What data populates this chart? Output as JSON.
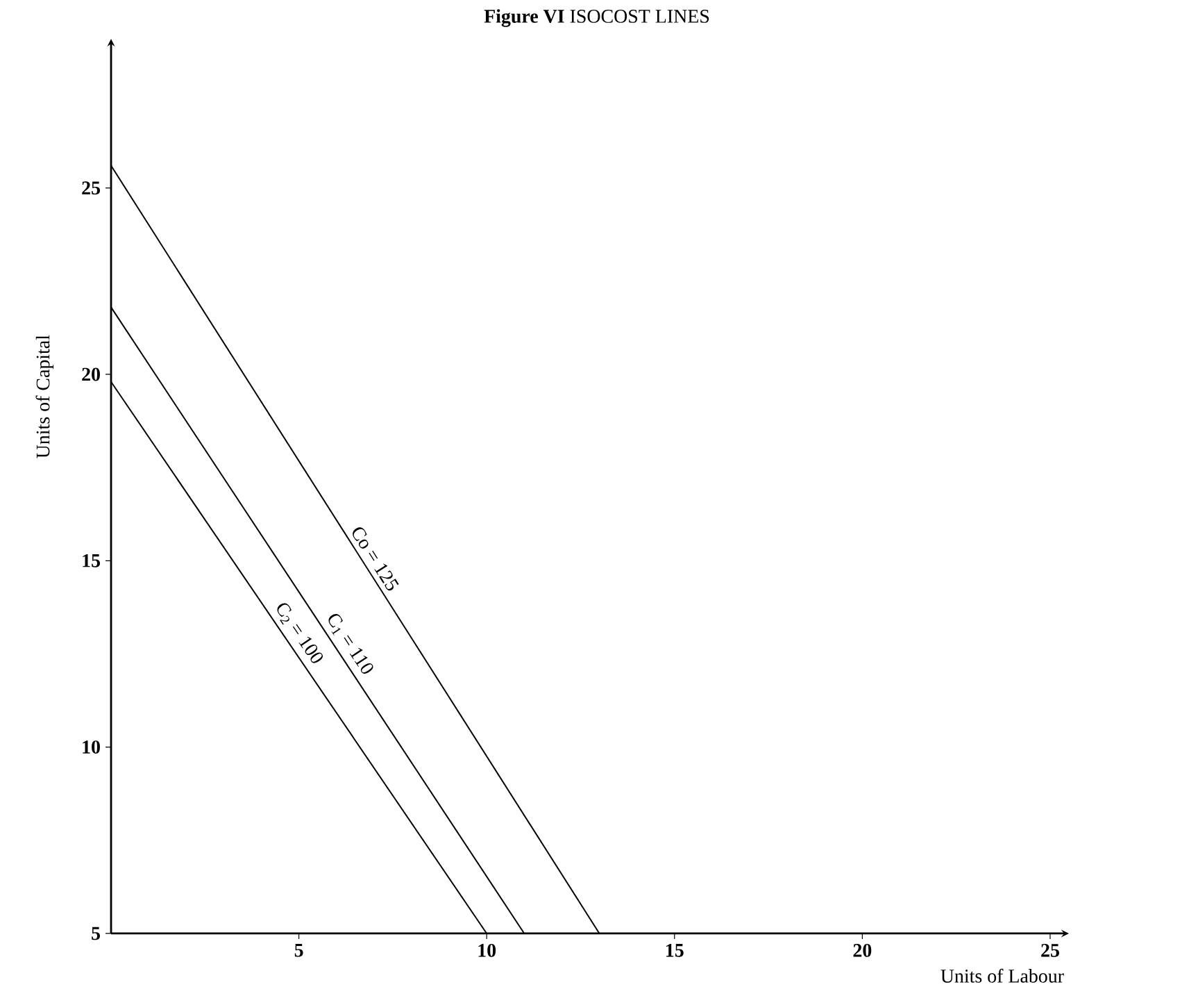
{
  "chart_data": {
    "type": "line",
    "title": "**Figure VI** ISOCOST LINES",
    "xlabel": "Units of Labour",
    "ylabel": "Units of Capital",
    "series": [
      {
        "name": "Co = 125",
        "color": "#000000",
        "x": [
          0,
          13
        ],
        "values": [
          25.6,
          5
        ]
      },
      {
        "name": "C$_{1}$ = 110",
        "color": "#000000",
        "x": [
          0,
          11
        ],
        "values": [
          21.8,
          5
        ]
      },
      {
        "name": "C$_{2}$ = 100",
        "color": "#000000",
        "x": [
          0,
          10
        ],
        "values": [
          19.8,
          5
        ]
      }
    ],
    "xlim": [
      0,
      25.5
    ],
    "ylim": [
      5,
      29
    ],
    "xticks": [
      5,
      10,
      15,
      20,
      25
    ],
    "yticks": [
      5,
      10,
      15,
      20,
      25
    ],
    "grid": false,
    "legend": false,
    "marker": "none",
    "line_style": "solid"
  }
}
